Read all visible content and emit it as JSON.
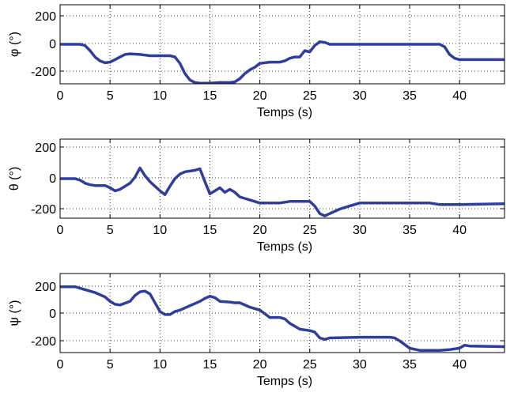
{
  "chart_data": [
    {
      "type": "line",
      "xlabel": "Temps (s)",
      "ylabel": "φ (°)",
      "xlim": [
        0,
        44.5
      ],
      "ylim": [
        -310,
        310
      ],
      "xticks": [
        0,
        5,
        10,
        15,
        20,
        25,
        30,
        35,
        40
      ],
      "yticks": [
        200,
        0,
        -200
      ],
      "grid": true,
      "series": [
        {
          "color": "#2f3e9e",
          "x": [
            0,
            2.0,
            2.5,
            3.0,
            3.5,
            4.0,
            4.5,
            5.0,
            5.5,
            6.0,
            6.5,
            7.0,
            8.0,
            8.5,
            9.0,
            10.0,
            11.0,
            11.5,
            12.0,
            12.5,
            13.0,
            13.5,
            14.0,
            15.0,
            16.0,
            17.0,
            17.5,
            18.0,
            18.5,
            19.0,
            19.5,
            20.0,
            21.0,
            22.0,
            22.5,
            23.0,
            23.5,
            24.0,
            24.5,
            25.0,
            25.5,
            26.0,
            26.5,
            27.0,
            30.0,
            35.0,
            38.0,
            38.5,
            39.0,
            39.5,
            40.0,
            41.0,
            44.5
          ],
          "y": [
            0,
            0,
            -10,
            -50,
            -100,
            -130,
            -145,
            -140,
            -120,
            -100,
            -80,
            -75,
            -80,
            -85,
            -90,
            -90,
            -90,
            -100,
            -150,
            -230,
            -280,
            -300,
            -305,
            -305,
            -300,
            -300,
            -295,
            -270,
            -230,
            -200,
            -180,
            -150,
            -140,
            -140,
            -130,
            -110,
            -100,
            -100,
            -50,
            -60,
            -10,
            20,
            15,
            0,
            0,
            0,
            0,
            -20,
            -80,
            -110,
            -120,
            -120,
            -120
          ]
        }
      ]
    },
    {
      "type": "line",
      "xlabel": "Temps (s)",
      "ylabel": "θ (°)",
      "xlim": [
        0,
        44.5
      ],
      "ylim": [
        -260,
        260
      ],
      "xticks": [
        0,
        5,
        10,
        15,
        20,
        25,
        30,
        35,
        40
      ],
      "yticks": [
        200,
        0,
        -200
      ],
      "grid": true,
      "series": [
        {
          "color": "#2f3e9e",
          "x": [
            0,
            1.5,
            2.0,
            2.5,
            3.0,
            3.5,
            4.0,
            4.5,
            5.0,
            5.5,
            6.0,
            6.5,
            7.0,
            7.5,
            8.0,
            8.5,
            9.0,
            9.5,
            10.0,
            10.5,
            11.0,
            11.5,
            12.0,
            12.5,
            13.0,
            13.5,
            14.0,
            14.5,
            15.0,
            15.5,
            16.0,
            16.5,
            17.0,
            17.5,
            18.0,
            18.5,
            19.0,
            20.0,
            22.0,
            23.0,
            24.0,
            25.0,
            25.5,
            26.0,
            26.5,
            27.0,
            28.0,
            29.0,
            30.0,
            35.0,
            37.0,
            38.0,
            40.0,
            44.5
          ],
          "y": [
            0,
            0,
            -10,
            -30,
            -40,
            -45,
            -45,
            -45,
            -60,
            -80,
            -70,
            -50,
            -30,
            10,
            70,
            20,
            -20,
            -50,
            -80,
            -105,
            -50,
            0,
            30,
            45,
            50,
            55,
            65,
            -20,
            -100,
            -80,
            -60,
            -90,
            -70,
            -90,
            -120,
            -130,
            -140,
            -160,
            -160,
            -150,
            -150,
            -150,
            -180,
            -230,
            -245,
            -230,
            -200,
            -180,
            -160,
            -160,
            -160,
            -170,
            -170,
            -165
          ]
        }
      ]
    },
    {
      "type": "line",
      "xlabel": "Temps (s)",
      "ylabel": "ψ (°)",
      "xlim": [
        0,
        44.5
      ],
      "ylim": [
        -300,
        240
      ],
      "xticks": [
        0,
        5,
        10,
        15,
        20,
        25,
        30,
        35,
        40
      ],
      "yticks": [
        200,
        0,
        -200
      ],
      "grid": true,
      "series": [
        {
          "color": "#2f3e9e",
          "x": [
            0,
            1.5,
            2.5,
            3.5,
            4.5,
            5.0,
            5.5,
            6.0,
            7.0,
            7.5,
            8.0,
            8.5,
            9.0,
            9.5,
            10.0,
            10.5,
            11.0,
            11.5,
            12.0,
            13.0,
            14.0,
            14.5,
            15.0,
            15.5,
            16.0,
            17.0,
            17.5,
            18.0,
            19.0,
            20.0,
            21.0,
            22.0,
            22.5,
            23.0,
            24.0,
            25.0,
            25.5,
            26.0,
            26.5,
            27.0,
            30.0,
            33.0,
            33.5,
            34.0,
            35.0,
            36.0,
            38.0,
            39.0,
            40.0,
            40.5,
            41.0,
            44.5
          ],
          "y": [
            150,
            150,
            130,
            110,
            80,
            50,
            30,
            25,
            50,
            90,
            115,
            120,
            100,
            40,
            -20,
            -40,
            -40,
            -20,
            -10,
            20,
            50,
            70,
            85,
            75,
            50,
            45,
            40,
            40,
            10,
            -10,
            -60,
            -60,
            -70,
            -100,
            -140,
            -150,
            -160,
            -200,
            -210,
            -200,
            -195,
            -195,
            -200,
            -220,
            -270,
            -285,
            -285,
            -280,
            -270,
            -250,
            -255,
            -260
          ]
        }
      ]
    }
  ]
}
